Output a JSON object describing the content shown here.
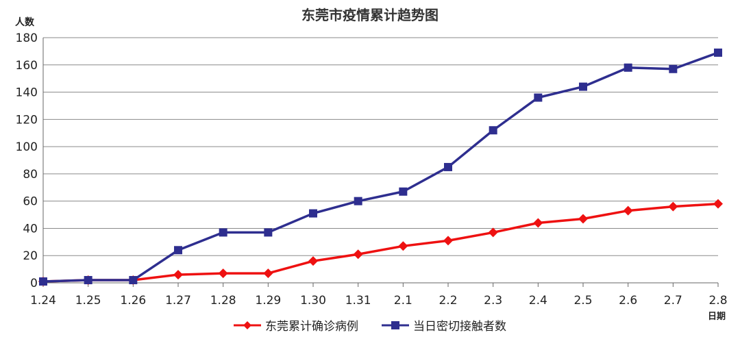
{
  "chart_data": {
    "type": "line",
    "title": "东莞市疫情累计趋势图",
    "ylabel": "人数",
    "xlabel": "日期",
    "categories": [
      "1.24",
      "1.25",
      "1.26",
      "1.27",
      "1.28",
      "1.29",
      "1.30",
      "1.31",
      "2.1",
      "2.2",
      "2.3",
      "2.4",
      "2.5",
      "2.6",
      "2.7",
      "2.8"
    ],
    "ylim": [
      0,
      180
    ],
    "yticks": [
      0,
      20,
      40,
      60,
      80,
      100,
      120,
      140,
      160,
      180
    ],
    "grid": "horizontal",
    "legend_position": "bottom",
    "series": [
      {
        "name": "东莞累计确诊病例",
        "color": "#ee1111",
        "marker": "diamond",
        "values": [
          1,
          2,
          2,
          6,
          7,
          7,
          16,
          21,
          27,
          31,
          37,
          44,
          47,
          53,
          56,
          58
        ]
      },
      {
        "name": "当日密切接触者数",
        "color": "#2e2e8f",
        "marker": "square",
        "values": [
          1,
          2,
          2,
          24,
          37,
          37,
          51,
          60,
          67,
          85,
          112,
          136,
          144,
          158,
          157,
          169
        ]
      }
    ]
  }
}
